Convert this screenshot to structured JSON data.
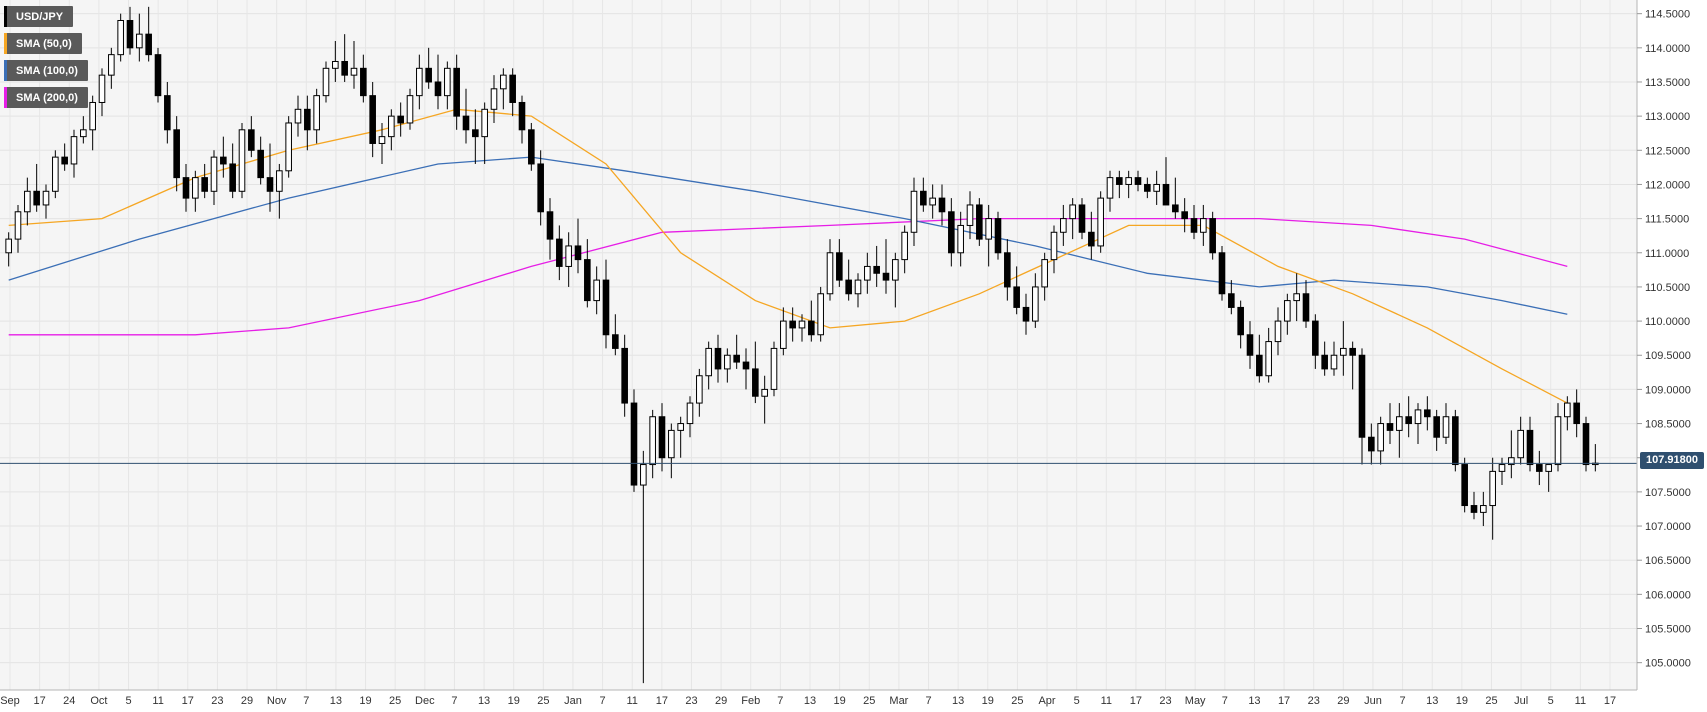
{
  "chart_data": {
    "type": "candlestick",
    "symbol": "USD/JPY",
    "ylim": [
      104.6,
      114.7
    ],
    "y_ticks": [
      "114.5000",
      "114.0000",
      "113.5000",
      "113.0000",
      "112.5000",
      "112.0000",
      "111.5000",
      "111.0000",
      "110.5000",
      "110.0000",
      "109.5000",
      "109.0000",
      "108.5000",
      "108.0000",
      "107.5000",
      "107.0000",
      "106.5000",
      "106.0000",
      "105.5000",
      "105.0000"
    ],
    "x_ticks": [
      "Sep",
      "17",
      "24",
      "Oct",
      "5",
      "11",
      "17",
      "23",
      "29",
      "Nov",
      "7",
      "13",
      "19",
      "25",
      "Dec",
      "7",
      "13",
      "19",
      "25",
      "Jan",
      "7",
      "11",
      "17",
      "23",
      "29",
      "Feb",
      "7",
      "13",
      "19",
      "25",
      "Mar",
      "7",
      "13",
      "19",
      "25",
      "Apr",
      "5",
      "11",
      "17",
      "23",
      "May",
      "7",
      "13",
      "17",
      "23",
      "29",
      "Jun",
      "7",
      "13",
      "19",
      "25",
      "Jul",
      "5",
      "11",
      "17"
    ],
    "last_price": "107.91800",
    "last_value": 107.918,
    "grid": true,
    "legend_position": "top-left",
    "colors": {
      "sma50": "#f5a623",
      "sma100": "#3b6fb6",
      "sma200": "#e61ee6",
      "bull": "#ffffff",
      "bear": "#000000",
      "price_line": "#2f4f6f",
      "background": "#f5f5f5"
    },
    "legend": [
      "USD/JPY",
      "SMA (50,0)",
      "SMA (100,0)",
      "SMA (200,0)"
    ],
    "candles": [
      [
        111.0,
        111.3,
        110.8,
        111.2
      ],
      [
        111.2,
        111.7,
        111.0,
        111.6
      ],
      [
        111.6,
        112.1,
        111.4,
        111.9
      ],
      [
        111.9,
        112.3,
        111.6,
        111.7
      ],
      [
        111.7,
        112.0,
        111.5,
        111.9
      ],
      [
        111.9,
        112.5,
        111.8,
        112.4
      ],
      [
        112.4,
        112.6,
        112.2,
        112.3
      ],
      [
        112.3,
        112.8,
        112.1,
        112.7
      ],
      [
        112.7,
        113.0,
        112.6,
        112.8
      ],
      [
        112.8,
        113.3,
        112.5,
        113.2
      ],
      [
        113.2,
        113.7,
        113.0,
        113.6
      ],
      [
        113.6,
        114.0,
        113.4,
        113.9
      ],
      [
        113.9,
        114.5,
        113.8,
        114.4
      ],
      [
        114.4,
        114.6,
        113.9,
        114.0
      ],
      [
        114.0,
        114.5,
        113.8,
        114.2
      ],
      [
        114.2,
        114.6,
        113.8,
        113.9
      ],
      [
        113.9,
        114.0,
        113.2,
        113.3
      ],
      [
        113.3,
        113.5,
        112.6,
        112.8
      ],
      [
        112.8,
        113.0,
        111.9,
        112.1
      ],
      [
        112.1,
        112.3,
        111.6,
        111.8
      ],
      [
        111.8,
        112.2,
        111.6,
        112.1
      ],
      [
        112.1,
        112.3,
        111.8,
        111.9
      ],
      [
        111.9,
        112.5,
        111.7,
        112.4
      ],
      [
        112.4,
        112.7,
        112.1,
        112.3
      ],
      [
        112.3,
        112.6,
        111.8,
        111.9
      ],
      [
        111.9,
        112.9,
        111.8,
        112.8
      ],
      [
        112.8,
        113.0,
        112.4,
        112.5
      ],
      [
        112.5,
        112.7,
        112.0,
        112.1
      ],
      [
        112.1,
        112.6,
        111.6,
        111.9
      ],
      [
        111.9,
        112.3,
        111.5,
        112.2
      ],
      [
        112.2,
        113.0,
        112.1,
        112.9
      ],
      [
        112.9,
        113.3,
        112.7,
        113.1
      ],
      [
        113.1,
        113.3,
        112.5,
        112.8
      ],
      [
        112.8,
        113.4,
        112.6,
        113.3
      ],
      [
        113.3,
        113.8,
        113.2,
        113.7
      ],
      [
        113.7,
        114.1,
        113.5,
        113.8
      ],
      [
        113.8,
        114.2,
        113.5,
        113.6
      ],
      [
        113.6,
        114.1,
        113.4,
        113.7
      ],
      [
        113.7,
        113.9,
        113.2,
        113.3
      ],
      [
        113.3,
        113.5,
        112.4,
        112.6
      ],
      [
        112.6,
        112.9,
        112.3,
        112.7
      ],
      [
        112.7,
        113.1,
        112.5,
        113.0
      ],
      [
        113.0,
        113.2,
        112.7,
        112.9
      ],
      [
        112.9,
        113.4,
        112.8,
        113.3
      ],
      [
        113.3,
        113.9,
        113.1,
        113.7
      ],
      [
        113.7,
        114.0,
        113.4,
        113.5
      ],
      [
        113.5,
        113.9,
        113.1,
        113.3
      ],
      [
        113.3,
        113.8,
        113.1,
        113.7
      ],
      [
        113.7,
        113.9,
        112.8,
        113.0
      ],
      [
        113.0,
        113.4,
        112.6,
        112.8
      ],
      [
        112.8,
        113.1,
        112.3,
        112.7
      ],
      [
        112.7,
        113.2,
        112.3,
        113.1
      ],
      [
        113.1,
        113.6,
        112.9,
        113.4
      ],
      [
        113.4,
        113.7,
        113.1,
        113.6
      ],
      [
        113.6,
        113.7,
        113.0,
        113.2
      ],
      [
        113.2,
        113.3,
        112.6,
        112.8
      ],
      [
        112.8,
        112.9,
        112.2,
        112.3
      ],
      [
        112.3,
        112.5,
        111.4,
        111.6
      ],
      [
        111.6,
        111.8,
        110.9,
        111.2
      ],
      [
        111.2,
        111.4,
        110.6,
        110.8
      ],
      [
        110.8,
        111.3,
        110.5,
        111.1
      ],
      [
        111.1,
        111.5,
        110.7,
        110.9
      ],
      [
        110.9,
        111.2,
        110.2,
        110.3
      ],
      [
        110.3,
        110.8,
        110.1,
        110.6
      ],
      [
        110.6,
        110.9,
        109.6,
        109.8
      ],
      [
        109.8,
        110.1,
        109.5,
        109.6
      ],
      [
        109.6,
        109.8,
        108.6,
        108.8
      ],
      [
        108.8,
        109.0,
        107.5,
        107.6
      ],
      [
        107.6,
        108.1,
        104.7,
        107.9
      ],
      [
        107.9,
        108.7,
        107.7,
        108.6
      ],
      [
        108.6,
        108.8,
        107.8,
        108.0
      ],
      [
        108.0,
        108.5,
        107.7,
        108.4
      ],
      [
        108.4,
        108.6,
        108.0,
        108.5
      ],
      [
        108.5,
        108.9,
        108.3,
        108.8
      ],
      [
        108.8,
        109.3,
        108.6,
        109.2
      ],
      [
        109.2,
        109.7,
        109.0,
        109.6
      ],
      [
        109.6,
        109.8,
        109.1,
        109.3
      ],
      [
        109.3,
        109.6,
        109.1,
        109.5
      ],
      [
        109.5,
        109.8,
        109.3,
        109.4
      ],
      [
        109.4,
        109.6,
        109.0,
        109.3
      ],
      [
        109.3,
        109.7,
        108.8,
        108.9
      ],
      [
        108.9,
        109.2,
        108.5,
        109.0
      ],
      [
        109.0,
        109.7,
        108.9,
        109.6
      ],
      [
        109.6,
        110.2,
        109.5,
        110.0
      ],
      [
        110.0,
        110.2,
        109.7,
        109.9
      ],
      [
        109.9,
        110.1,
        109.7,
        110.0
      ],
      [
        110.0,
        110.3,
        109.7,
        109.8
      ],
      [
        109.8,
        110.5,
        109.7,
        110.4
      ],
      [
        110.4,
        111.2,
        110.3,
        111.0
      ],
      [
        111.0,
        111.2,
        110.5,
        110.6
      ],
      [
        110.6,
        110.9,
        110.3,
        110.4
      ],
      [
        110.4,
        110.7,
        110.2,
        110.6
      ],
      [
        110.6,
        111.0,
        110.4,
        110.8
      ],
      [
        110.8,
        111.1,
        110.5,
        110.7
      ],
      [
        110.7,
        111.2,
        110.4,
        110.6
      ],
      [
        110.6,
        111.0,
        110.2,
        110.9
      ],
      [
        110.9,
        111.4,
        110.7,
        111.3
      ],
      [
        111.3,
        112.1,
        111.1,
        111.9
      ],
      [
        111.9,
        112.1,
        111.6,
        111.7
      ],
      [
        111.7,
        112.0,
        111.5,
        111.8
      ],
      [
        111.8,
        112.0,
        111.4,
        111.6
      ],
      [
        111.6,
        111.8,
        110.8,
        111.0
      ],
      [
        111.0,
        111.6,
        110.8,
        111.4
      ],
      [
        111.4,
        111.9,
        111.2,
        111.7
      ],
      [
        111.7,
        111.8,
        111.1,
        111.2
      ],
      [
        111.2,
        111.7,
        110.8,
        111.5
      ],
      [
        111.5,
        111.6,
        110.9,
        111.0
      ],
      [
        111.0,
        111.2,
        110.3,
        110.5
      ],
      [
        110.5,
        110.8,
        110.1,
        110.2
      ],
      [
        110.2,
        110.4,
        109.8,
        110.0
      ],
      [
        110.0,
        110.7,
        109.9,
        110.5
      ],
      [
        110.5,
        111.0,
        110.3,
        110.9
      ],
      [
        110.9,
        111.4,
        110.7,
        111.3
      ],
      [
        111.3,
        111.7,
        111.1,
        111.5
      ],
      [
        111.5,
        111.8,
        111.2,
        111.7
      ],
      [
        111.7,
        111.8,
        111.2,
        111.3
      ],
      [
        111.3,
        111.6,
        110.9,
        111.1
      ],
      [
        111.1,
        111.9,
        111.0,
        111.8
      ],
      [
        111.8,
        112.2,
        111.6,
        112.1
      ],
      [
        112.1,
        112.2,
        111.8,
        112.0
      ],
      [
        112.0,
        112.2,
        111.8,
        112.1
      ],
      [
        112.1,
        112.2,
        111.9,
        112.0
      ],
      [
        112.0,
        112.1,
        111.8,
        111.9
      ],
      [
        111.9,
        112.2,
        111.7,
        112.0
      ],
      [
        112.0,
        112.4,
        111.8,
        111.7
      ],
      [
        111.7,
        112.1,
        111.5,
        111.6
      ],
      [
        111.6,
        111.8,
        111.3,
        111.5
      ],
      [
        111.5,
        111.7,
        111.2,
        111.3
      ],
      [
        111.3,
        111.7,
        111.1,
        111.5
      ],
      [
        111.5,
        111.6,
        110.9,
        111.0
      ],
      [
        111.0,
        111.1,
        110.3,
        110.4
      ],
      [
        110.4,
        110.6,
        110.1,
        110.2
      ],
      [
        110.2,
        110.3,
        109.6,
        109.8
      ],
      [
        109.8,
        110.0,
        109.3,
        109.5
      ],
      [
        109.5,
        109.8,
        109.1,
        109.2
      ],
      [
        109.2,
        109.9,
        109.1,
        109.7
      ],
      [
        109.7,
        110.2,
        109.5,
        110.0
      ],
      [
        110.0,
        110.4,
        109.8,
        110.3
      ],
      [
        110.3,
        110.7,
        110.0,
        110.4
      ],
      [
        110.4,
        110.6,
        109.9,
        110.0
      ],
      [
        110.0,
        110.1,
        109.3,
        109.5
      ],
      [
        109.5,
        109.7,
        109.2,
        109.3
      ],
      [
        109.3,
        109.7,
        109.2,
        109.5
      ],
      [
        109.5,
        110.0,
        109.2,
        109.6
      ],
      [
        109.6,
        109.7,
        109.0,
        109.5
      ],
      [
        109.5,
        109.6,
        107.9,
        108.3
      ],
      [
        108.3,
        108.5,
        107.9,
        108.1
      ],
      [
        108.1,
        108.6,
        107.9,
        108.5
      ],
      [
        108.5,
        108.8,
        108.2,
        108.4
      ],
      [
        108.4,
        108.8,
        108.0,
        108.6
      ],
      [
        108.6,
        108.9,
        108.3,
        108.5
      ],
      [
        108.5,
        108.8,
        108.2,
        108.7
      ],
      [
        108.7,
        108.9,
        108.4,
        108.6
      ],
      [
        108.6,
        108.7,
        108.1,
        108.3
      ],
      [
        108.3,
        108.8,
        108.2,
        108.6
      ],
      [
        108.6,
        108.7,
        107.8,
        107.9
      ],
      [
        107.9,
        108.0,
        107.2,
        107.3
      ],
      [
        107.3,
        107.5,
        107.1,
        107.2
      ],
      [
        107.2,
        107.5,
        107.0,
        107.3
      ],
      [
        107.3,
        108.0,
        106.8,
        107.8
      ],
      [
        107.8,
        108.0,
        107.6,
        107.9
      ],
      [
        107.9,
        108.4,
        107.7,
        108.0
      ],
      [
        108.0,
        108.6,
        107.9,
        108.4
      ],
      [
        108.4,
        108.6,
        107.8,
        107.9
      ],
      [
        107.9,
        108.1,
        107.6,
        107.8
      ],
      [
        107.8,
        107.9,
        107.5,
        107.9
      ],
      [
        107.9,
        108.8,
        107.8,
        108.6
      ],
      [
        108.6,
        108.9,
        108.4,
        108.8
      ],
      [
        108.8,
        109.0,
        108.3,
        108.5
      ],
      [
        108.5,
        108.6,
        107.8,
        107.9
      ],
      [
        107.9,
        108.2,
        107.8,
        107.92
      ]
    ],
    "sma50": [
      [
        0,
        111.4
      ],
      [
        10,
        111.5
      ],
      [
        20,
        112.1
      ],
      [
        30,
        112.5
      ],
      [
        40,
        112.8
      ],
      [
        48,
        113.1
      ],
      [
        56,
        113.0
      ],
      [
        64,
        112.3
      ],
      [
        72,
        111.0
      ],
      [
        80,
        110.3
      ],
      [
        88,
        109.9
      ],
      [
        96,
        110.0
      ],
      [
        104,
        110.4
      ],
      [
        112,
        110.9
      ],
      [
        120,
        111.4
      ],
      [
        128,
        111.4
      ],
      [
        136,
        110.8
      ],
      [
        144,
        110.4
      ],
      [
        152,
        109.9
      ],
      [
        160,
        109.3
      ],
      [
        167,
        108.8
      ]
    ],
    "sma100": [
      [
        0,
        110.6
      ],
      [
        14,
        111.2
      ],
      [
        30,
        111.8
      ],
      [
        46,
        112.3
      ],
      [
        56,
        112.4
      ],
      [
        66,
        112.2
      ],
      [
        80,
        111.9
      ],
      [
        96,
        111.5
      ],
      [
        110,
        111.1
      ],
      [
        122,
        110.7
      ],
      [
        134,
        110.5
      ],
      [
        142,
        110.6
      ],
      [
        152,
        110.5
      ],
      [
        160,
        110.3
      ],
      [
        167,
        110.1
      ]
    ],
    "sma200": [
      [
        0,
        109.8
      ],
      [
        20,
        109.8
      ],
      [
        30,
        109.9
      ],
      [
        44,
        110.3
      ],
      [
        56,
        110.8
      ],
      [
        70,
        111.3
      ],
      [
        88,
        111.4
      ],
      [
        104,
        111.5
      ],
      [
        122,
        111.5
      ],
      [
        134,
        111.5
      ],
      [
        146,
        111.4
      ],
      [
        156,
        111.2
      ],
      [
        167,
        110.8
      ]
    ]
  }
}
